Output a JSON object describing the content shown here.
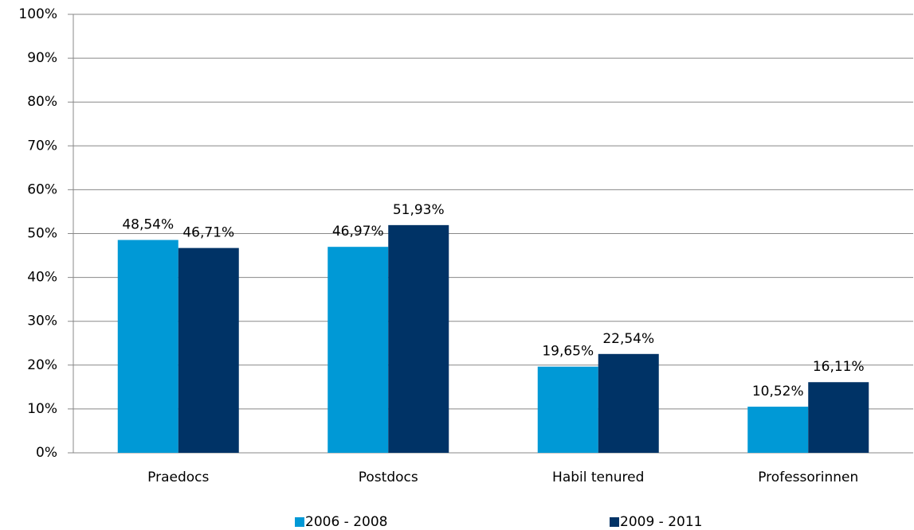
{
  "chart_data": {
    "type": "bar",
    "categories": [
      "Praedocs",
      "Postdocs",
      "Habil tenured",
      "Professorinnen"
    ],
    "series": [
      {
        "name": "2006 - 2008",
        "color": "#0099d6",
        "values": [
          48.54,
          46.97,
          19.65,
          10.52
        ],
        "value_labels": [
          "48,54%",
          "46,97%",
          "19,65%",
          "10,52%"
        ]
      },
      {
        "name": "2009 - 2011",
        "color": "#003366",
        "values": [
          46.71,
          51.93,
          22.54,
          16.11
        ],
        "value_labels": [
          "46,71%",
          "51,93%",
          "22,54%",
          "16,11%"
        ]
      }
    ],
    "ylim": [
      0,
      100
    ],
    "yticks": [
      {
        "value": 0,
        "label": "0%"
      },
      {
        "value": 10,
        "label": "10%"
      },
      {
        "value": 20,
        "label": "20%"
      },
      {
        "value": 30,
        "label": "30%"
      },
      {
        "value": 40,
        "label": "40%"
      },
      {
        "value": 50,
        "label": "50%"
      },
      {
        "value": 60,
        "label": "60%"
      },
      {
        "value": 70,
        "label": "70%"
      },
      {
        "value": 80,
        "label": "80%"
      },
      {
        "value": 90,
        "label": "90%"
      },
      {
        "value": 100,
        "label": "100%"
      }
    ],
    "grid": true,
    "legend": "bottom"
  }
}
